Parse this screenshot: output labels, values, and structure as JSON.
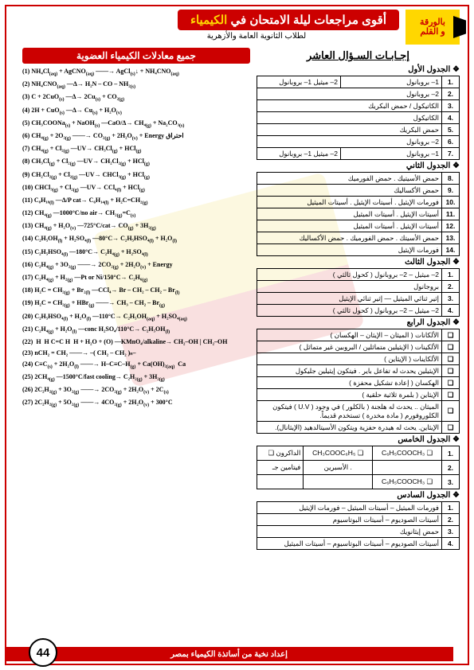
{
  "logo": {
    "line1": "بالورقة",
    "line2": "و القلم"
  },
  "mainTitle": {
    "pre": "أقوى مراجعات ليلة الامتحان في ",
    "chem": "الكيمياء"
  },
  "subtitle": "لطلاب الثانوية العامة والأزهرية",
  "ansTitle": "إجـابـات السـؤال العاشر",
  "tables": {
    "t1": {
      "h": "الجدول الأول",
      "r": [
        [
          "1",
          "1– بروبانول ",
          "2– ميثيل 1– بروبانول"
        ],
        [
          "2",
          "2– بروبانول",
          ""
        ],
        [
          "3",
          "الكاتيكول / حمض البكريك",
          ""
        ],
        [
          "4",
          "الكاتيكول",
          ""
        ],
        [
          "5",
          "حمض البكريك",
          ""
        ],
        [
          "6",
          "2– بروبانول",
          ""
        ],
        [
          "7",
          "1– بروبانول ",
          "2– ميثيل 1– بروبانول"
        ]
      ]
    },
    "t2": {
      "h": "الجدول الثاني",
      "r": [
        [
          "8",
          "حمض الأسيتيك . حمض الفورميك"
        ],
        [
          "9",
          "حمض الأكساليك"
        ],
        [
          "10",
          "فورمات الإيثيل . أسيتات الإيثيل . أسيتات الميثيل"
        ],
        [
          "11",
          "أسيتات الإيثيل . أسيتات الميثيل"
        ],
        [
          "12",
          "أسيتات الإيثيل . أسيتات الميثيل"
        ],
        [
          "13",
          "حمض الأسيتك . حمض الفورميك . حمض الأكساليك"
        ],
        [
          "14",
          "فورمات الإيثيل"
        ]
      ]
    },
    "t3": {
      "h": "الجدول الثالث",
      "r": [
        [
          "1",
          "2– ميثيل – 2– بروبانول ( كحول ثالثي )"
        ],
        [
          "2",
          "بروجانول"
        ],
        [
          "3",
          "إثير ثنائي الميثيل — إثير ثنائي الإيثيل"
        ],
        [
          "4",
          "2– ميثيل – 2– بروبانول ( كحول ثالثي )"
        ]
      ]
    },
    "t4": {
      "h": "الجدول الرابع",
      "r": [
        [
          "الألكانات ( الميثان – الإيثان – الهكسان )"
        ],
        [
          "الألكينات ( الإيثيلين متماثلين / البروبين غير متماثل )"
        ],
        [
          "الألكاينات ( الإيثاين )"
        ],
        [
          "الإيثيلين يحدث له تفاعل باير . فيتكون إيثيلين جليكول"
        ],
        [
          "الهكسان ( إعادة تشكيل محفزة )"
        ],
        [
          "الإيثاين ( بلمرة ثلاثية حلقية )"
        ],
        [
          "الميثان .. يحدث له هلجنة ( بالكلور ) في وجود ( U.V ) فيتكون الكلوروفورم ( مادة مخدرة ) تستخدم قديماً."
        ],
        [
          "الإيثاين. يحث له هيدرة حفزية ويتكون الأسيتالدهيد (الإيثانال)."
        ]
      ]
    },
    "t5": {
      "h": "الجدول الخامس",
      "r": [
        [
          "1",
          "الداكرون ❏",
          "CH₃COOC₆H₅ ❏",
          "C₆H₅COOCH₃ ❏"
        ],
        [
          "2",
          "فيتامين جـ",
          "الأسبرين .",
          ""
        ],
        [
          "3",
          "",
          "",
          "C₆H₅COOCH₃ ❏"
        ]
      ]
    },
    "t6": {
      "h": "الجدول السادس",
      "r": [
        [
          "1",
          "فورمات الميثيل – أسيتات الميثيل – فورمات الإيثيل"
        ],
        [
          "2",
          "أسيتات الصوديوم – أسيتات البوتاسيوم"
        ],
        [
          "3",
          "حمض إيثانويك"
        ],
        [
          "4",
          "أسيتات الصوديوم – أسيتات البوتاسيوم – أسيتات الميثيل"
        ]
      ]
    }
  },
  "redTitle": "جميع معادلات الكيمياء العضوية",
  "equations": [
    "(1) NH₄Cl<sub>(aq)</sub> + AgCNO<sub>(aq)</sub> ——→ AgCl<sub>(s)</sub>↓ + NH₄CNO<sub>(aq)</sub>",
    "(2) NH₄CNO<sub>(aq)</sub> —Δ→ H₂N – CO – NH₂<sub>(s)</sub>",
    "(3) C + 2CuO<sub>(s)</sub> —Δ→ 2Cu<sub>(s)</sub> + CO₂<sub>(g)</sub>",
    "(4) 2H + CuO<sub>(s)</sub> —Δ→ Cu<sub>(s)</sub> + H₂O<sub>(v)</sub>",
    "(5) CH₃COONa<sub>(s)</sub> + NaOH<sub>(s)</sub> —CaO/Δ→ CH₄<sub>(g)</sub> + Na₂CO₃<sub>(s)</sub>",
    "(6) CH₄<sub>(g)</sub> + 2O₂<sub>(g)</sub> ——→ CO₂<sub>(g)</sub> + 2H₂O<sub>(v)</sub> + Energy احتراق",
    "(7) CH₄<sub>(g)</sub> + Cl₂<sub>(g)</sub> —UV→ CH₃Cl<sub>(g)</sub> + HCl<sub>(g)</sub>",
    "(8) CH₃Cl<sub>(g)</sub> + Cl₂<sub>(g)</sub> —UV→ CH₂Cl₂<sub>(g)</sub> + HCl<sub>(g)</sub>",
    "(9) CH₂Cl₂<sub>(g)</sub> + Cl₂<sub>(g)</sub> —UV→ CHCl₃<sub>(g)</sub> + HCl<sub>(g)</sub>",
    "(10) CHCl₃<sub>(g)</sub> + Cl₂<sub>(g)</sub> —UV→ CCl₄<sub>(l)</sub> + HCl<sub>(g)</sub>",
    "(11) C₈H₁₈<sub>(l)</sub> —Δ/P cat→ C₆H₁₄<sub>(l)</sub> + H₂C=CH₂<sub>(g)</sub>",
    "(12) CH₄<sub>(g)</sub> —1000°C/no air→ CH₂<sub>(g)</sub>=C<sub>(s)</sub>",
    "(13) CH₄<sub>(g)</sub> + H₂O<sub>(v)</sub> —725°C/cat→ CO<sub>(g)</sub> + 3H₂<sub>(g)</sub>",
    "(14) C₂H₅OH<sub>(l)</sub> + H₂SO₄<sub>(l)</sub> —80°C→ C₂H₅HSO₄<sub>(l)</sub> + H₂O<sub>(l)</sub>",
    "(15) C₂H₅HSO₄<sub>(l)</sub> —180°C→ C₂H₄<sub>(g)</sub> + H₂SO₄<sub>(l)</sub>",
    "(16) C₂H₄<sub>(g)</sub> + 3O₂<sub>(g)</sub> ——→ 2CO₂<sub>(g)</sub> + 2H₂O<sub>(v)</sub> + Energy",
    "(17) C₂H₄<sub>(g)</sub> + H₂<sub>(g)</sub> —Pt or Ni/150°C→ C₂H₆<sub>(g)</sub>",
    "(18) H₂C = CH₂<sub>(g)</sub> + Br₂<sub>(l)</sub> —CCl₄→ Br – CH₂ – CH₂ – Br<sub>(l)</sub>",
    "(19) H₂C = CH₂<sub>(g)</sub> + HBr<sub>(g)</sub> ——→ CH₃ – CH₂ – Br<sub>(g)</sub>",
    "(20) C₂H₅HSO₄<sub>(l)</sub> + H₂O<sub>(l)</sub> —110°C→ C₂H₅OH<sub>(aq)</sub> + H₂SO₄<sub>(aq)</sub>",
    "(21) C₂H₄<sub>(g)</sub> + H₂O<sub>(l)</sub> —conc H₂SO₄/110°C→ C₂H₅OH<sub>(l)</sub>",
    "(22) &nbsp;H&nbsp;&nbsp;H&nbsp;C=C&nbsp;H&nbsp;&nbsp;H + H₂O + (O) —KMnO₄/alkaline→ CH₂–OH | CH₂–OH",
    "(23) nCH₂ = CH₂ ——→ –( CH₂ – CH₂ )ₙ–",
    "(24) C≡C<sub>(s)</sub> + 2H₂O<sub>(l)</sub> ——→ H–C≡C–H<sub>(g)</sub> + Ca(OH)₂<sub>(aq)</sub>&nbsp;&nbsp;Ca",
    "(25) 2CH₄<sub>(g)</sub> —1500°C/fast cooling→ C₂H₂<sub>(g)</sub> + 3H₂<sub>(g)</sub>",
    "(26) 2C₂H₂<sub>(g)</sub> + 3O₂<sub>(g)</sub> ——→ 2CO₂<sub>(g)</sub> + 2H₂O<sub>(v)</sub> + 2C<sub>(s)</sub>",
    "(27) 2C₂H₂<sub>(g)</sub> + 5O₂<sub>(g)</sub> ——→ 4CO₂<sub>(g)</sub> + 2H₂O<sub>(v)</sub> + 300°C"
  ],
  "footer": "إعداد نخبة من أساتذة الكيمياء بمصر",
  "pageNum": "44"
}
